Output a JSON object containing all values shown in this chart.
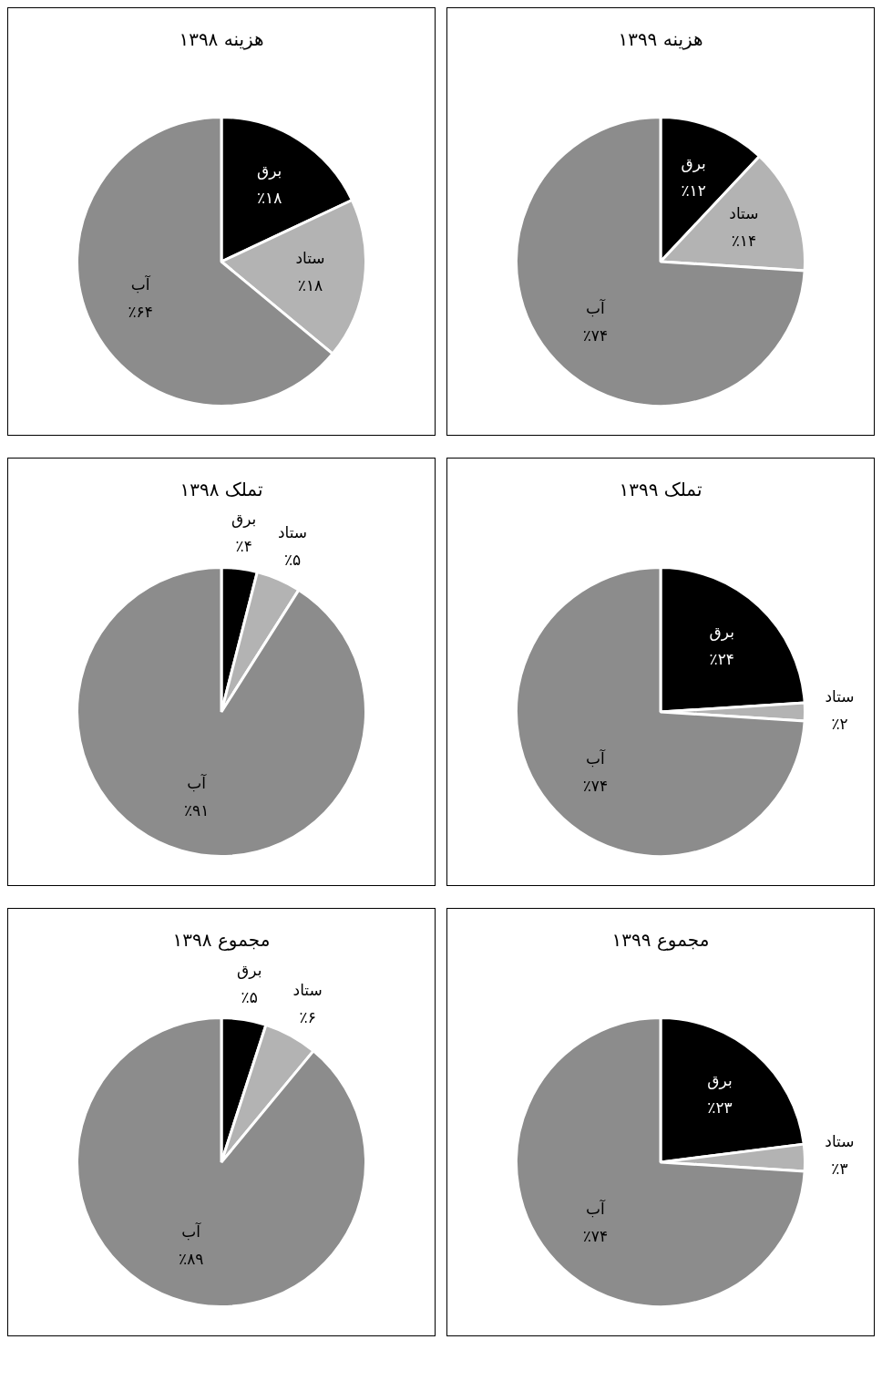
{
  "chart_data": [
    {
      "type": "pie",
      "title": "هزینه ۱۳۹۸",
      "categories": [
        "برق",
        "ستاد",
        "آب"
      ],
      "values": [
        18,
        18,
        64
      ],
      "colors": [
        "#000000",
        "#b3b3b3",
        "#8c8c8c"
      ],
      "value_labels": [
        "٪۱۸",
        "٪۱۸",
        "٪۶۴"
      ]
    },
    {
      "type": "pie",
      "title": "هزینه ۱۳۹۹",
      "categories": [
        "برق",
        "ستاد",
        "آب"
      ],
      "values": [
        12,
        14,
        74
      ],
      "colors": [
        "#000000",
        "#b3b3b3",
        "#8c8c8c"
      ],
      "value_labels": [
        "٪۱۲",
        "٪۱۴",
        "٪۷۴"
      ]
    },
    {
      "type": "pie",
      "title": "تملک ۱۳۹۸",
      "categories": [
        "برق",
        "ستاد",
        "آب"
      ],
      "values": [
        4,
        5,
        91
      ],
      "colors": [
        "#000000",
        "#b3b3b3",
        "#8c8c8c"
      ],
      "value_labels": [
        "٪۴",
        "٪۵",
        "٪۹۱"
      ]
    },
    {
      "type": "pie",
      "title": "تملک ۱۳۹۹",
      "categories": [
        "برق",
        "ستاد",
        "آب"
      ],
      "values": [
        24,
        2,
        74
      ],
      "colors": [
        "#000000",
        "#b3b3b3",
        "#8c8c8c"
      ],
      "value_labels": [
        "٪۲۴",
        "٪۲",
        "٪۷۴"
      ]
    },
    {
      "type": "pie",
      "title": "مجموع ۱۳۹۸",
      "categories": [
        "برق",
        "ستاد",
        "آب"
      ],
      "values": [
        5,
        6,
        89
      ],
      "colors": [
        "#000000",
        "#b3b3b3",
        "#8c8c8c"
      ],
      "value_labels": [
        "٪۵",
        "٪۶",
        "٪۸۹"
      ]
    },
    {
      "type": "pie",
      "title": "مجموع ۱۳۹۹",
      "categories": [
        "برق",
        "ستاد",
        "آب"
      ],
      "values": [
        23,
        3,
        74
      ],
      "colors": [
        "#000000",
        "#b3b3b3",
        "#8c8c8c"
      ],
      "value_labels": [
        "٪۲۳",
        "٪۳",
        "٪۷۴"
      ]
    }
  ]
}
